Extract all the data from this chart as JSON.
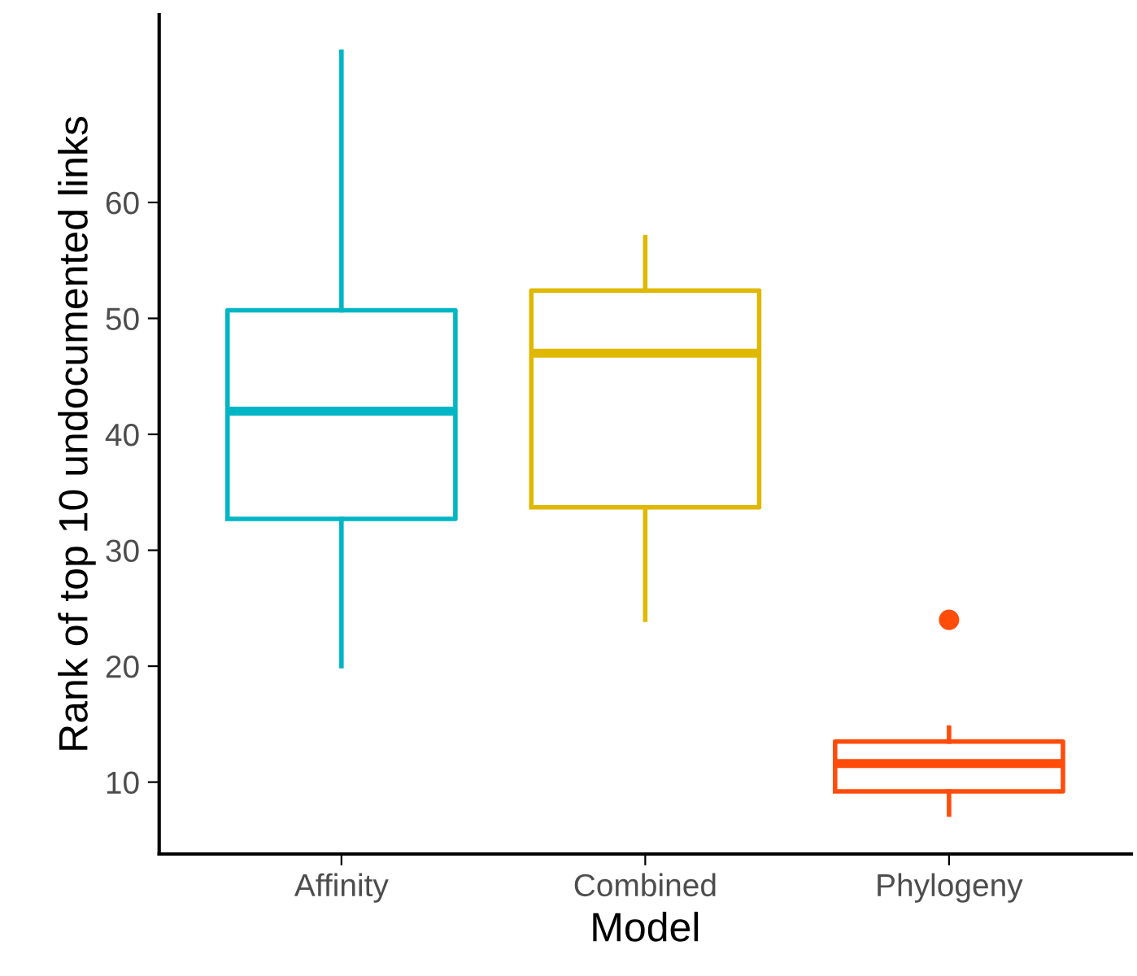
{
  "chart_data": {
    "type": "box",
    "xlabel": "Model",
    "ylabel": "Rank of top 10 undocumented links",
    "categories": [
      "Affinity",
      "Combined",
      "Phylogeny"
    ],
    "colors": [
      "#00b5c4",
      "#e0b800",
      "#ff4c0a"
    ],
    "boxes": [
      {
        "low": 20,
        "q1": 32.7,
        "median": 42,
        "q3": 50.7,
        "high": 73
      },
      {
        "low": 24,
        "q1": 33.7,
        "median": 47,
        "q3": 52.4,
        "high": 57
      },
      {
        "low": 7.2,
        "q1": 9.2,
        "median": 11.6,
        "q3": 13.5,
        "high": 14.7,
        "outliers": [
          24
        ]
      }
    ],
    "ylim": [
      3.8,
      76.2
    ],
    "yticks": [
      10,
      20,
      30,
      40,
      50,
      60
    ],
    "grid": false,
    "legend": false
  }
}
